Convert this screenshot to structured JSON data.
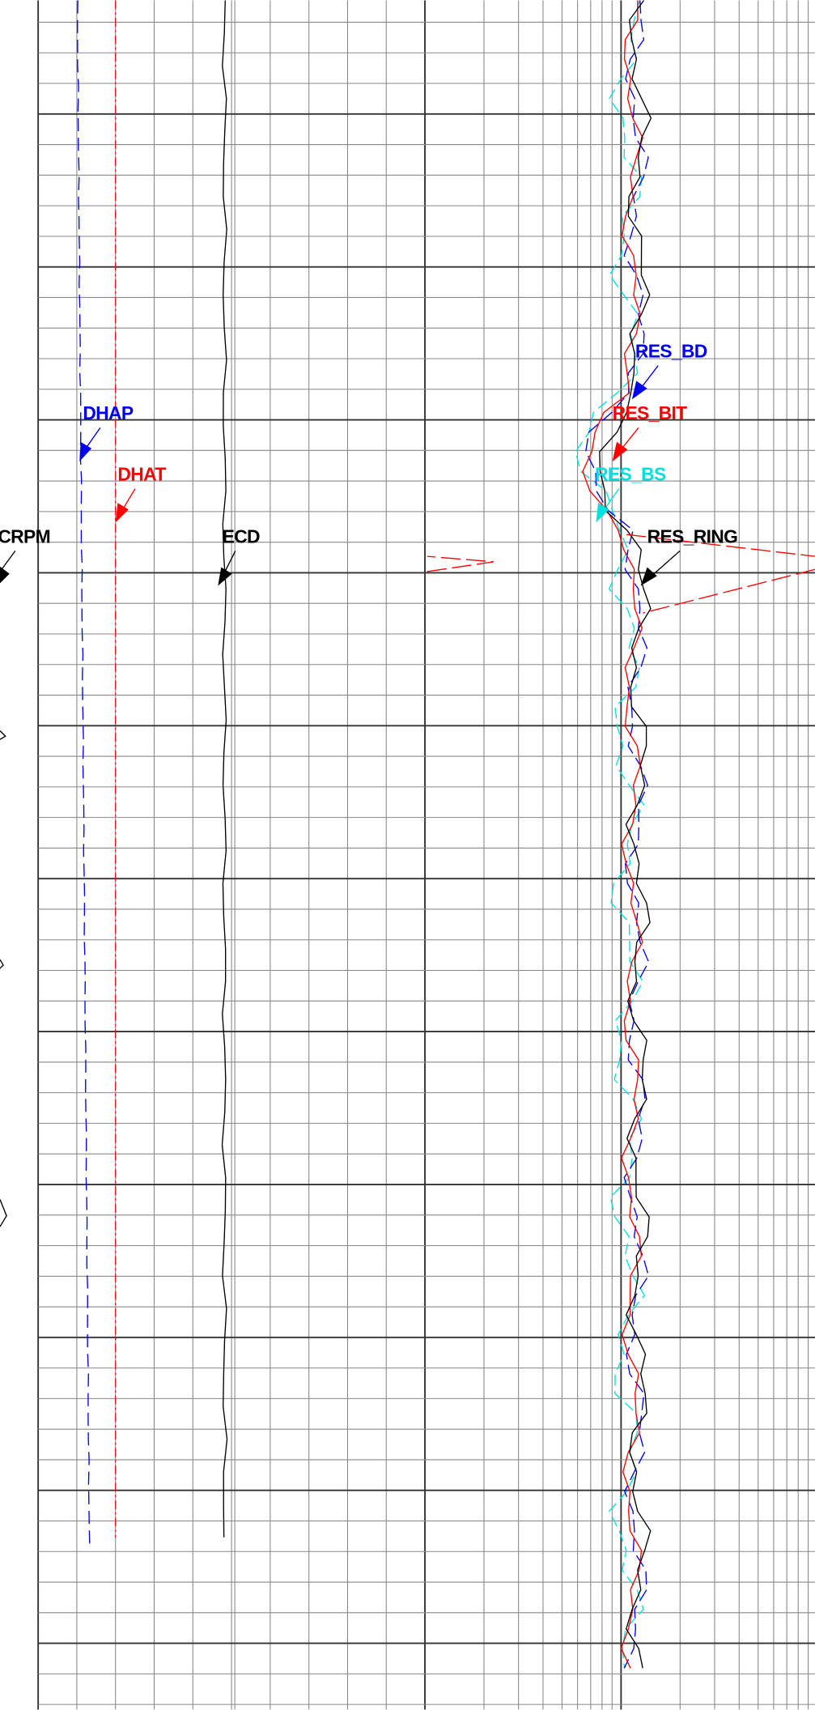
{
  "labels": {
    "crpm": "CRPM",
    "ecd": "ECD",
    "dhap": "DHAP",
    "dhat": "DHAT",
    "res_bd": "RES_BD",
    "res_bit": "RES_BIT",
    "res_bs": "RES_BS",
    "res_ring": "RES_RING"
  }
}
